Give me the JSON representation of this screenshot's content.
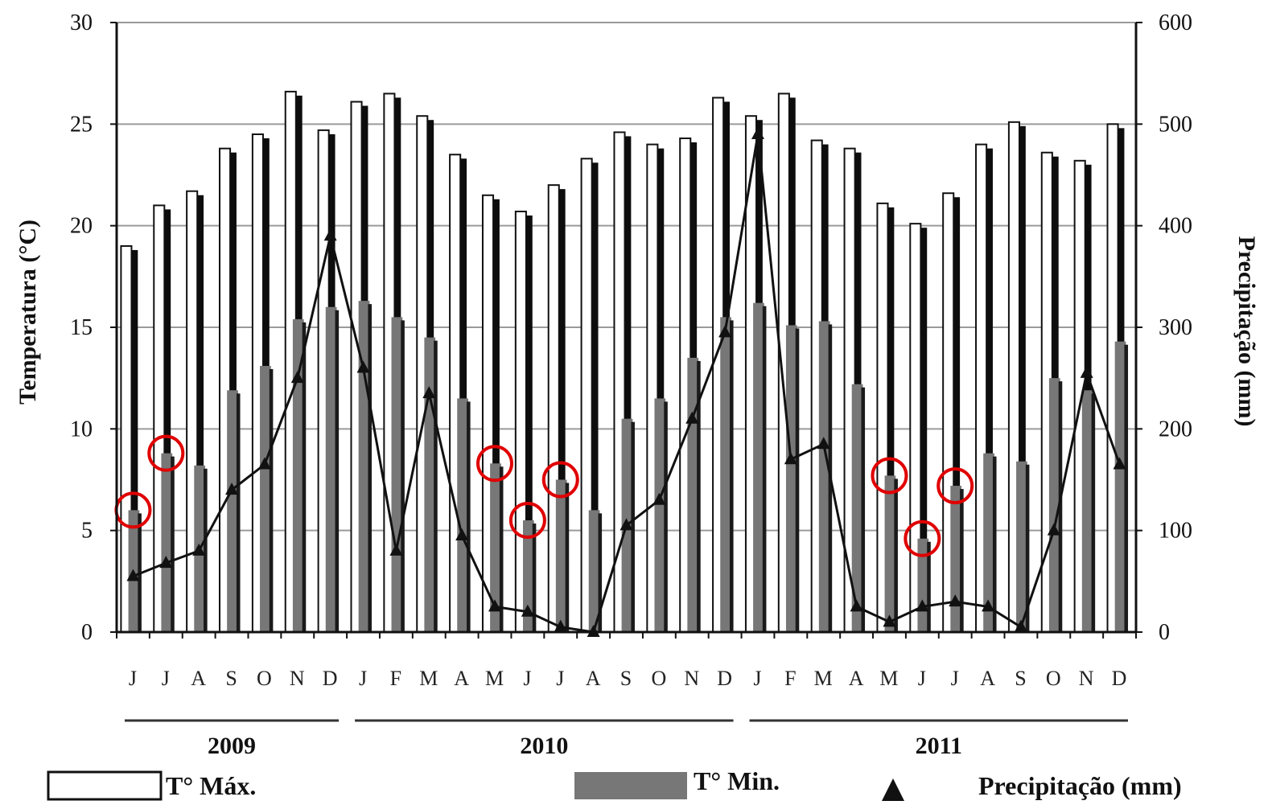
{
  "chart_data": {
    "type": "bar",
    "categories": [
      "J",
      "J",
      "A",
      "S",
      "O",
      "N",
      "D",
      "J",
      "F",
      "M",
      "A",
      "M",
      "J",
      "J",
      "A",
      "S",
      "O",
      "N",
      "D",
      "J",
      "F",
      "M",
      "A",
      "M",
      "J",
      "J",
      "A",
      "S",
      "O",
      "N",
      "D"
    ],
    "year_groups": [
      {
        "label": "2009",
        "start": 0,
        "end": 6
      },
      {
        "label": "2010",
        "start": 7,
        "end": 18
      },
      {
        "label": "2011",
        "start": 19,
        "end": 30
      }
    ],
    "series": [
      {
        "name": "T° Máx.",
        "axis": "left",
        "kind": "bar",
        "color": "#ffffff",
        "values": [
          19.0,
          21.0,
          21.7,
          23.8,
          24.5,
          26.6,
          24.7,
          26.1,
          26.5,
          25.4,
          23.5,
          21.5,
          20.7,
          22.0,
          23.3,
          24.6,
          24.0,
          24.3,
          26.3,
          25.4,
          26.5,
          24.2,
          23.8,
          21.1,
          20.1,
          21.6,
          24.0,
          25.1,
          23.6,
          23.2,
          25.0
        ]
      },
      {
        "name": "T° Min.",
        "axis": "left",
        "kind": "bar",
        "color": "#777777",
        "values": [
          6.0,
          8.8,
          8.2,
          11.9,
          13.1,
          15.4,
          16.0,
          16.3,
          15.5,
          14.5,
          11.5,
          8.3,
          5.5,
          7.5,
          6.0,
          10.5,
          11.5,
          13.5,
          15.5,
          16.2,
          15.1,
          15.3,
          12.2,
          7.7,
          4.6,
          7.2,
          8.8,
          8.4,
          12.5,
          11.9,
          14.3
        ]
      },
      {
        "name": "Precipitação (mm)",
        "axis": "right",
        "kind": "line",
        "color": "#111111",
        "values": [
          55,
          68,
          80,
          140,
          165,
          250,
          390,
          260,
          80,
          235,
          95,
          25,
          20,
          5,
          0,
          105,
          130,
          210,
          295,
          490,
          170,
          185,
          25,
          10,
          25,
          30,
          25,
          5,
          100,
          255,
          165
        ]
      }
    ],
    "highlighted_points": [
      {
        "series": "T° Min.",
        "index": 0
      },
      {
        "series": "T° Min.",
        "index": 1
      },
      {
        "series": "T° Min.",
        "index": 11
      },
      {
        "series": "T° Min.",
        "index": 12
      },
      {
        "series": "T° Min.",
        "index": 13
      },
      {
        "series": "T° Min.",
        "index": 23
      },
      {
        "series": "T° Min.",
        "index": 24
      },
      {
        "series": "T° Min.",
        "index": 25
      }
    ],
    "highlight_color": "#e00000",
    "ylabel": "Temperatura (°C)",
    "ylabel_right": "Precipitação (mm)",
    "ylim": [
      0,
      30
    ],
    "yticks": [
      "0",
      "5",
      "10",
      "15",
      "20",
      "25",
      "30"
    ],
    "ylim_right": [
      0,
      600
    ],
    "yticks_right": [
      "0",
      "100",
      "200",
      "300",
      "400",
      "500",
      "600"
    ],
    "grid": true,
    "legend_position": "bottom",
    "legend": [
      "T° Máx.",
      "T° Min.",
      "Precipitação (mm)"
    ]
  }
}
